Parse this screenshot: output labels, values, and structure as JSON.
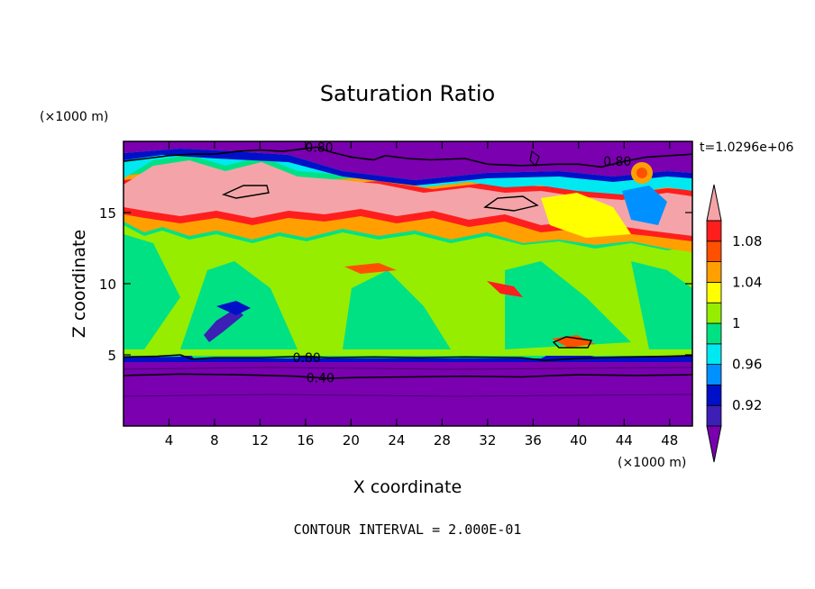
{
  "chart_data": {
    "type": "heatmap",
    "title": "Saturation Ratio",
    "xlabel": "X coordinate",
    "ylabel": "Z coordinate",
    "x_unit": "(×1000 m)",
    "y_unit": "(×1000 m)",
    "time_label": "t=1.0296e+06",
    "contour_note": "CONTOUR INTERVAL = 2.000E-01",
    "xlim": [
      0,
      50
    ],
    "ylim": [
      0,
      20
    ],
    "x_ticks": [
      4,
      8,
      12,
      16,
      20,
      24,
      28,
      32,
      36,
      40,
      44,
      48
    ],
    "y_ticks": [
      5,
      10,
      15
    ],
    "x_tick_labels": [
      "4",
      "8",
      "12",
      "16",
      "20",
      "24",
      "28",
      "32",
      "36",
      "40",
      "44",
      "48"
    ],
    "y_tick_labels": [
      "5",
      "10",
      "15"
    ],
    "colorbar": {
      "levels": [
        0.9,
        0.92,
        0.94,
        0.96,
        0.98,
        1.0,
        1.02,
        1.04,
        1.06,
        1.08,
        1.1
      ],
      "labels": [
        "0.92",
        "0.96",
        "1",
        "1.04",
        "1.08"
      ],
      "label_values": [
        0.92,
        0.96,
        1.0,
        1.04,
        1.08
      ],
      "colors": [
        "#7a00b0",
        "#3c1fb4",
        "#0010c8",
        "#0090ff",
        "#00e8f0",
        "#00e184",
        "#96ed00",
        "#ffff00",
        "#ffa000",
        "#ff5000",
        "#ff1e1e",
        "#f4a4a8"
      ]
    },
    "contour_labels": [
      {
        "text": "0.80",
        "x": 17.2,
        "z": 19.6
      },
      {
        "text": "0.80",
        "x": 43.4,
        "z": 18.6
      },
      {
        "text": "0.80",
        "x": 16.1,
        "z": 4.8
      },
      {
        "text": "0.40",
        "x": 17.3,
        "z": 3.4
      }
    ],
    "contour_lines": [
      {
        "name": "0.80 upper",
        "x": [
          0,
          2,
          4,
          6,
          8,
          10,
          12,
          14,
          16,
          17,
          18,
          20,
          22,
          23,
          25,
          27,
          30,
          32,
          35,
          38,
          40,
          42,
          44,
          46,
          48,
          50
        ],
        "z": [
          18.6,
          18.8,
          19.0,
          19.1,
          19.1,
          19.3,
          19.4,
          19.3,
          19.5,
          19.6,
          19.3,
          18.9,
          18.7,
          19.0,
          18.8,
          18.7,
          18.8,
          18.4,
          18.3,
          18.4,
          18.4,
          18.2,
          18.6,
          18.9,
          19.0,
          19.1
        ]
      },
      {
        "name": "0.80 lower",
        "x": [
          0,
          3,
          5,
          6,
          8,
          12,
          16,
          18,
          22,
          26,
          30,
          35,
          37,
          40,
          44,
          48,
          50
        ],
        "z": [
          4.85,
          4.9,
          5.0,
          4.7,
          4.8,
          4.8,
          4.9,
          4.8,
          4.85,
          4.8,
          4.85,
          4.8,
          4.6,
          4.75,
          4.85,
          4.9,
          4.95
        ]
      },
      {
        "name": "0.40",
        "x": [
          0,
          5,
          10,
          15,
          18,
          20,
          25,
          30,
          35,
          38,
          40,
          45,
          50
        ],
        "z": [
          3.55,
          3.65,
          3.6,
          3.5,
          3.35,
          3.4,
          3.45,
          3.5,
          3.45,
          3.55,
          3.6,
          3.55,
          3.6
        ]
      }
    ]
  }
}
